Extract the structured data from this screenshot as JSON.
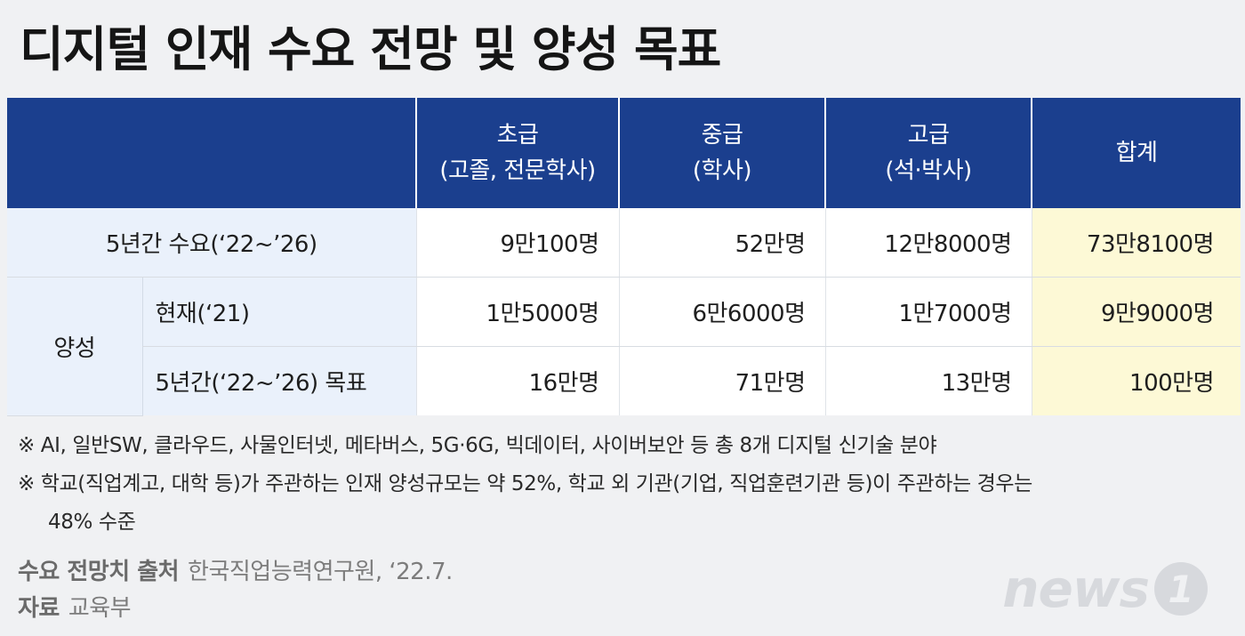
{
  "title": "디지털 인재 수요 전망 및 양성 목표",
  "table": {
    "headers": [
      {
        "line1": "초급",
        "line2": "(고졸, 전문학사)"
      },
      {
        "line1": "중급",
        "line2": "(학사)"
      },
      {
        "line1": "고급",
        "line2": "(석·박사)"
      },
      {
        "line1": "합계",
        "line2": ""
      }
    ],
    "demand": {
      "label": "5년간 수요(‘22~’26)",
      "values": [
        "9만100명",
        "52만명",
        "12만8000명",
        "73만8100명"
      ]
    },
    "training": {
      "label": "양성",
      "current": {
        "label": "현재(‘21)",
        "values": [
          "1만5000명",
          "6만6000명",
          "1만7000명",
          "9만9000명"
        ]
      },
      "target": {
        "label": "5년간(‘22~’26) 목표",
        "values": [
          "16만명",
          "71만명",
          "13만명",
          "100만명"
        ]
      }
    }
  },
  "notes": [
    "※ AI, 일반SW, 클라우드, 사물인터넷, 메타버스, 5G·6G, 빅데이터, 사이버보안 등 총 8개 디지털 신기술 분야",
    "※ 학교(직업계고, 대학 등)가 주관하는 인재 양성규모는 약 52%, 학교 외 기관(기업, 직업훈련기관 등)이 주관하는 경우는",
    "48% 수준"
  ],
  "source": {
    "label": "수요 전망치 출처",
    "value": "한국직업능력연구원, ‘22.7."
  },
  "credit": {
    "label": "자료",
    "value": "교육부"
  },
  "logo": {
    "text": "news",
    "mark": "1"
  },
  "colors": {
    "header_bg": "#1b3f8e",
    "label_bg": "#eaf1fb",
    "total_bg": "#fdf9d6"
  }
}
